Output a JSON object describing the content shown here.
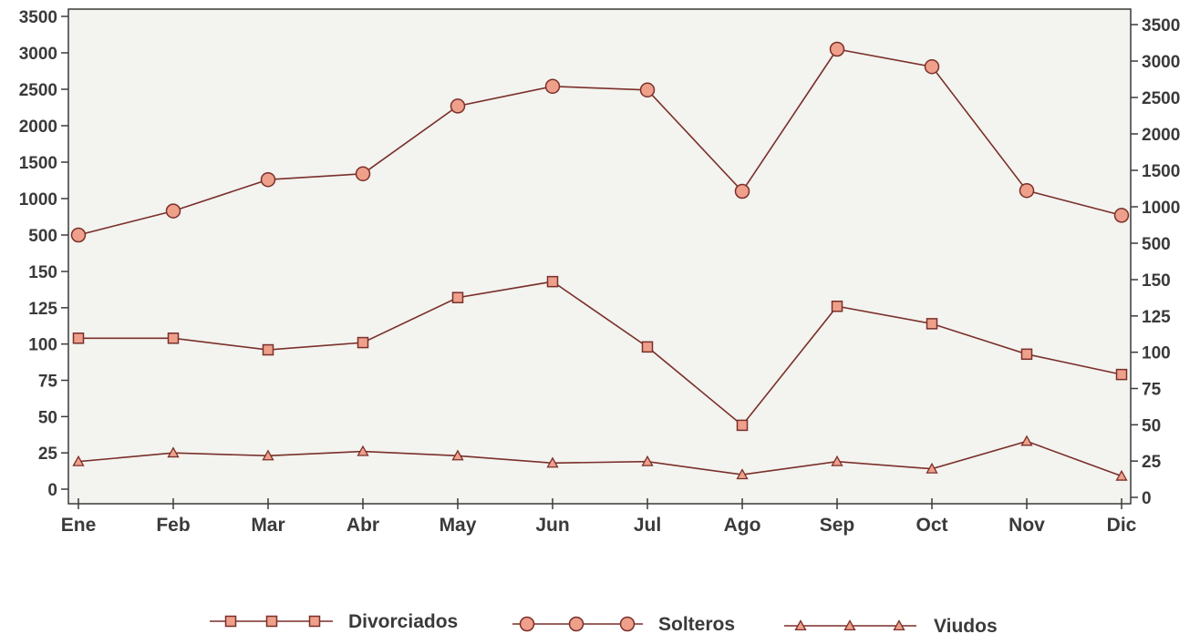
{
  "chart_data": {
    "type": "line",
    "categories": [
      "Ene",
      "Feb",
      "Mar",
      "Abr",
      "May",
      "Jun",
      "Jul",
      "Ago",
      "Sep",
      "Oct",
      "Nov",
      "Dic"
    ],
    "y_axis": {
      "type": "broken",
      "lower_segment": {
        "range": [
          0,
          150
        ],
        "ticks": [
          "0",
          "25",
          "50",
          "75",
          "100",
          "125",
          "150"
        ]
      },
      "upper_segment": {
        "range": [
          500,
          3500
        ],
        "ticks": [
          "500",
          "1000",
          "1500",
          "2000",
          "2500",
          "3000",
          "3500"
        ]
      },
      "mirrored_right_axis": true
    },
    "series": [
      {
        "name": "Divorciados",
        "marker": "square",
        "values": [
          104,
          104,
          96,
          101,
          132,
          143,
          98,
          44,
          126,
          114,
          93,
          79
        ]
      },
      {
        "name": "Solteros",
        "marker": "circle",
        "values": [
          500,
          830,
          1260,
          1340,
          2270,
          2540,
          2490,
          1100,
          3050,
          2810,
          1110,
          770
        ]
      },
      {
        "name": "Viudos",
        "marker": "triangle",
        "values": [
          19,
          25,
          23,
          26,
          23,
          18,
          19,
          10,
          19,
          14,
          33,
          9
        ]
      }
    ],
    "grid": false,
    "legend_position": "bottom",
    "colors": {
      "line": "#7a2f2a",
      "marker_fill": "#eea08a",
      "plot_bg": "#f3f3ef",
      "axis": "#3a3a3a"
    }
  }
}
